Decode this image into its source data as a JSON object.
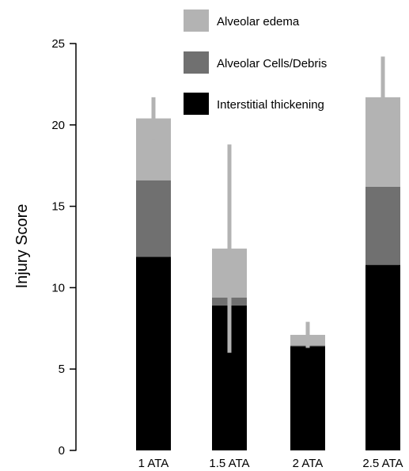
{
  "chart_data": {
    "type": "bar",
    "stacked": true,
    "categories": [
      "1 ATA",
      "1.5 ATA",
      "2 ATA",
      "2.5 ATA"
    ],
    "ylabel": "Injury Score",
    "xlabel": "",
    "ylim": [
      0,
      25
    ],
    "yticks": [
      0,
      5,
      10,
      15,
      20,
      25
    ],
    "grid": false,
    "legend_position": "top-right",
    "series": [
      {
        "name": "Interstitial thickening",
        "color": "#000000",
        "values": [
          11.9,
          8.9,
          6.4,
          11.4
        ]
      },
      {
        "name": "Alveolar Cells/Debris",
        "color": "#707070",
        "values": [
          4.7,
          0.5,
          0.05,
          4.8
        ]
      },
      {
        "name": "Alveolar edema",
        "color": "#b3b3b3",
        "values": [
          3.8,
          3.0,
          0.65,
          5.5
        ]
      }
    ],
    "error_bars": {
      "color": "#b3b3b3",
      "top": [
        21.7,
        18.8,
        7.9,
        24.2
      ],
      "bottom": [
        19.1,
        6.0,
        6.3,
        19.3
      ]
    }
  }
}
